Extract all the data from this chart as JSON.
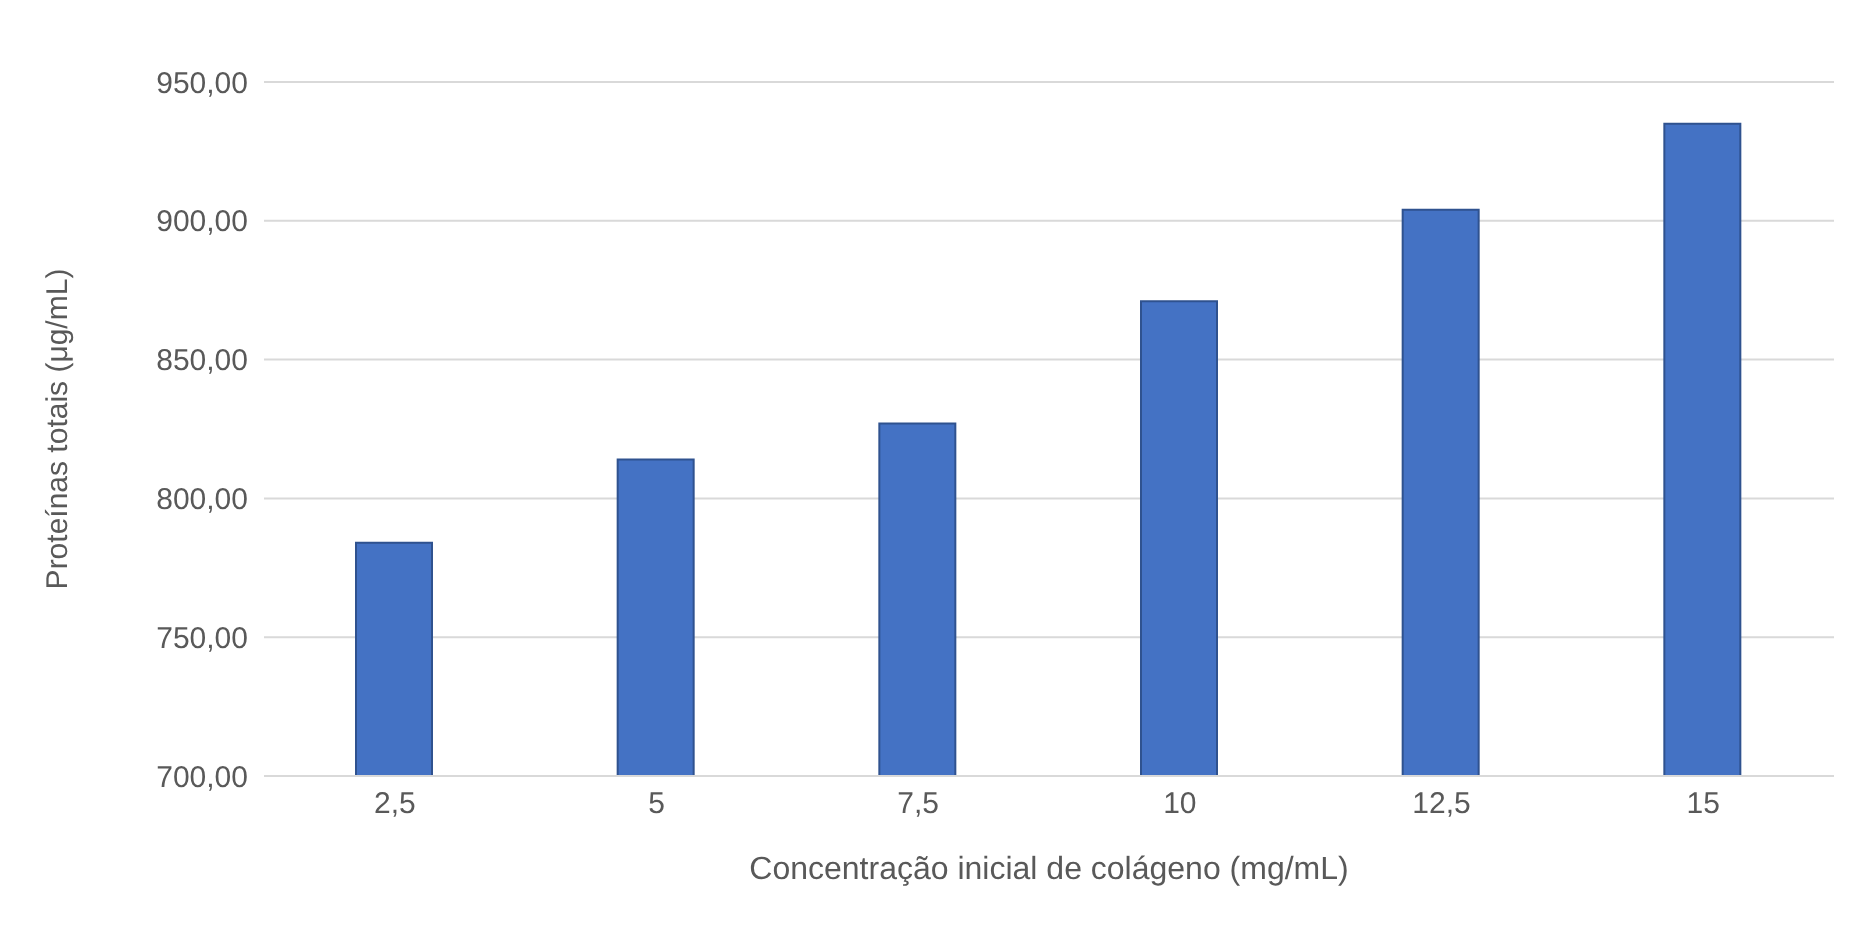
{
  "chart_data": {
    "type": "bar",
    "xlabel": "Concentração inicial de colágeno (mg/mL)",
    "ylabel": "Proteínas totais (μg/mL)",
    "categories": [
      "2,5",
      "5",
      "7,5",
      "10",
      "12,5",
      "15"
    ],
    "values": [
      784,
      814,
      827,
      871,
      904,
      935
    ],
    "color": "#4472c4",
    "ylim": [
      700,
      950
    ],
    "yticks": [
      {
        "value": 700,
        "label": "700,00"
      },
      {
        "value": 750,
        "label": "750,00"
      },
      {
        "value": 800,
        "label": "800,00"
      },
      {
        "value": 850,
        "label": "850,00"
      },
      {
        "value": 900,
        "label": "900,00"
      },
      {
        "value": 950,
        "label": "950,00"
      }
    ],
    "grid": "y"
  }
}
